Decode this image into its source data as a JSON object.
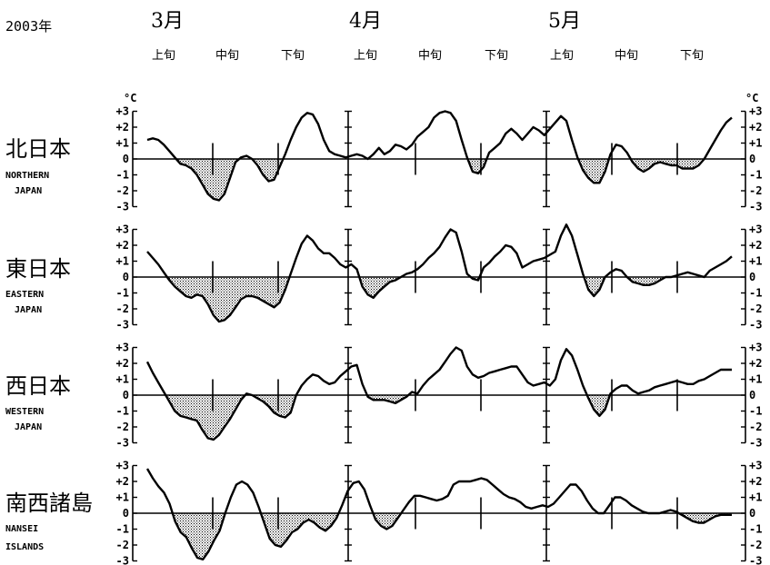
{
  "header": {
    "year": "2003年",
    "months": [
      "3月",
      "4月",
      "5月"
    ],
    "dekads": [
      "上旬",
      "中旬",
      "下旬",
      "上旬",
      "中旬",
      "下旬",
      "上旬",
      "中旬",
      "下旬"
    ]
  },
  "unit": "°C",
  "chart_data": {
    "type": "line",
    "title": "",
    "xlabel": "",
    "ylabel": "°C",
    "x_range": [
      "2003-03-01",
      "2003-05-31"
    ],
    "ylim": [
      -3,
      3
    ],
    "yticks": [
      "+3",
      "+2",
      "+1",
      "0",
      "-1",
      "-2",
      "-3"
    ],
    "grid": false,
    "negative_fill": "dotted",
    "series": [
      {
        "name_jp": "北日本",
        "name_en_1": "NORTHERN",
        "name_en_2": "JAPAN",
        "values": [
          1.2,
          1.3,
          1.2,
          0.9,
          0.5,
          0.1,
          -0.3,
          -0.4,
          -0.6,
          -1.0,
          -1.6,
          -2.2,
          -2.5,
          -2.6,
          -2.2,
          -1.2,
          -0.2,
          0.1,
          0.2,
          0.0,
          -0.4,
          -1.0,
          -1.4,
          -1.3,
          -0.5,
          0.3,
          1.2,
          2.0,
          2.6,
          2.9,
          2.8,
          2.2,
          1.2,
          0.5,
          0.3,
          0.2,
          0.1,
          0.2,
          0.3,
          0.2,
          0.0,
          0.3,
          0.7,
          0.3,
          0.5,
          0.9,
          0.8,
          0.6,
          0.9,
          1.4,
          1.7,
          2.0,
          2.6,
          2.9,
          3.0,
          2.9,
          2.4,
          1.2,
          0.1,
          -0.8,
          -0.9,
          -0.5,
          0.4,
          0.7,
          1.0,
          1.6,
          1.9,
          1.6,
          1.2,
          1.6,
          2.0,
          1.8,
          1.5,
          1.9,
          2.3,
          2.7,
          2.4,
          1.2,
          0.1,
          -0.7,
          -1.2,
          -1.5,
          -1.5,
          -0.8,
          0.3,
          0.9,
          0.8,
          0.4,
          -0.2,
          -0.6,
          -0.8,
          -0.6,
          -0.3,
          -0.2,
          -0.3,
          -0.4,
          -0.4,
          -0.6,
          -0.6,
          -0.6,
          -0.4,
          0.0,
          0.6,
          1.2,
          1.8,
          2.3,
          2.6
        ]
      },
      {
        "name_jp": "東日本",
        "name_en_1": "EASTERN",
        "name_en_2": "JAPAN",
        "values": [
          1.6,
          1.2,
          0.8,
          0.3,
          -0.2,
          -0.6,
          -0.9,
          -1.2,
          -1.3,
          -1.1,
          -1.2,
          -1.7,
          -2.4,
          -2.8,
          -2.7,
          -2.4,
          -1.9,
          -1.4,
          -1.2,
          -1.2,
          -1.3,
          -1.5,
          -1.7,
          -1.9,
          -1.6,
          -0.8,
          0.2,
          1.2,
          2.1,
          2.6,
          2.3,
          1.8,
          1.5,
          1.5,
          1.2,
          0.8,
          0.6,
          0.8,
          0.5,
          -0.6,
          -1.1,
          -1.3,
          -0.9,
          -0.6,
          -0.3,
          -0.2,
          0.0,
          0.2,
          0.3,
          0.5,
          0.8,
          1.2,
          1.5,
          1.9,
          2.5,
          3.0,
          2.8,
          1.6,
          0.2,
          -0.1,
          -0.2,
          0.6,
          0.9,
          1.3,
          1.6,
          2.0,
          1.9,
          1.5,
          0.6,
          0.8,
          1.0,
          1.1,
          1.2,
          1.4,
          1.6,
          2.6,
          3.3,
          2.6,
          1.4,
          0.2,
          -0.8,
          -1.2,
          -0.8,
          0.0,
          0.3,
          0.5,
          0.4,
          0.0,
          -0.3,
          -0.4,
          -0.5,
          -0.5,
          -0.4,
          -0.2,
          0.0,
          0.0,
          0.1,
          0.2,
          0.3,
          0.2,
          0.1,
          0.0,
          0.4,
          0.6,
          0.8,
          1.0,
          1.3
        ]
      },
      {
        "name_jp": "西日本",
        "name_en_1": "WESTERN",
        "name_en_2": "JAPAN",
        "values": [
          2.1,
          1.4,
          0.8,
          0.2,
          -0.4,
          -1.0,
          -1.3,
          -1.4,
          -1.5,
          -1.6,
          -2.2,
          -2.7,
          -2.8,
          -2.5,
          -2.0,
          -1.5,
          -0.9,
          -0.3,
          0.1,
          0.0,
          -0.2,
          -0.4,
          -0.7,
          -1.1,
          -1.3,
          -1.4,
          -1.1,
          0.0,
          0.6,
          1.0,
          1.3,
          1.2,
          0.9,
          0.7,
          0.8,
          1.2,
          1.5,
          1.8,
          1.9,
          0.7,
          -0.1,
          -0.3,
          -0.3,
          -0.3,
          -0.4,
          -0.5,
          -0.3,
          -0.1,
          0.2,
          0.1,
          0.6,
          1.0,
          1.3,
          1.6,
          2.1,
          2.6,
          3.0,
          2.8,
          1.8,
          1.3,
          1.1,
          1.2,
          1.4,
          1.5,
          1.6,
          1.7,
          1.8,
          1.8,
          1.3,
          0.8,
          0.6,
          0.7,
          0.8,
          0.6,
          1.0,
          2.2,
          2.9,
          2.5,
          1.6,
          0.6,
          -0.2,
          -0.9,
          -1.3,
          -0.9,
          0.1,
          0.4,
          0.6,
          0.6,
          0.3,
          0.1,
          0.2,
          0.3,
          0.5,
          0.6,
          0.7,
          0.8,
          0.9,
          0.8,
          0.7,
          0.7,
          0.9,
          1.0,
          1.2,
          1.4,
          1.6,
          1.6,
          1.6
        ]
      },
      {
        "name_jp": "南西諸島",
        "name_en_1": "NANSEI",
        "name_en_2": "ISLANDS",
        "values": [
          2.8,
          2.2,
          1.7,
          1.3,
          0.6,
          -0.5,
          -1.2,
          -1.5,
          -2.2,
          -2.8,
          -2.9,
          -2.4,
          -1.7,
          -1.1,
          0.0,
          1.0,
          1.8,
          2.0,
          1.8,
          1.3,
          0.4,
          -0.6,
          -1.6,
          -2.0,
          -2.1,
          -1.7,
          -1.2,
          -1.0,
          -0.6,
          -0.4,
          -0.6,
          -0.9,
          -1.1,
          -0.8,
          -0.3,
          0.5,
          1.4,
          1.9,
          2.0,
          1.5,
          0.5,
          -0.4,
          -0.8,
          -1.0,
          -0.8,
          -0.3,
          0.2,
          0.7,
          1.1,
          1.1,
          1.0,
          0.9,
          0.8,
          0.9,
          1.1,
          1.8,
          2.0,
          2.0,
          2.0,
          2.1,
          2.2,
          2.1,
          1.8,
          1.5,
          1.2,
          1.0,
          0.9,
          0.7,
          0.4,
          0.3,
          0.4,
          0.5,
          0.4,
          0.6,
          1.0,
          1.4,
          1.8,
          1.8,
          1.4,
          0.8,
          0.3,
          0.0,
          0.0,
          0.5,
          1.0,
          1.0,
          0.8,
          0.5,
          0.3,
          0.1,
          0.0,
          0.0,
          0.0,
          0.1,
          0.2,
          0.1,
          -0.1,
          -0.3,
          -0.5,
          -0.6,
          -0.6,
          -0.4,
          -0.2,
          -0.1,
          -0.1,
          -0.1
        ]
      }
    ]
  }
}
